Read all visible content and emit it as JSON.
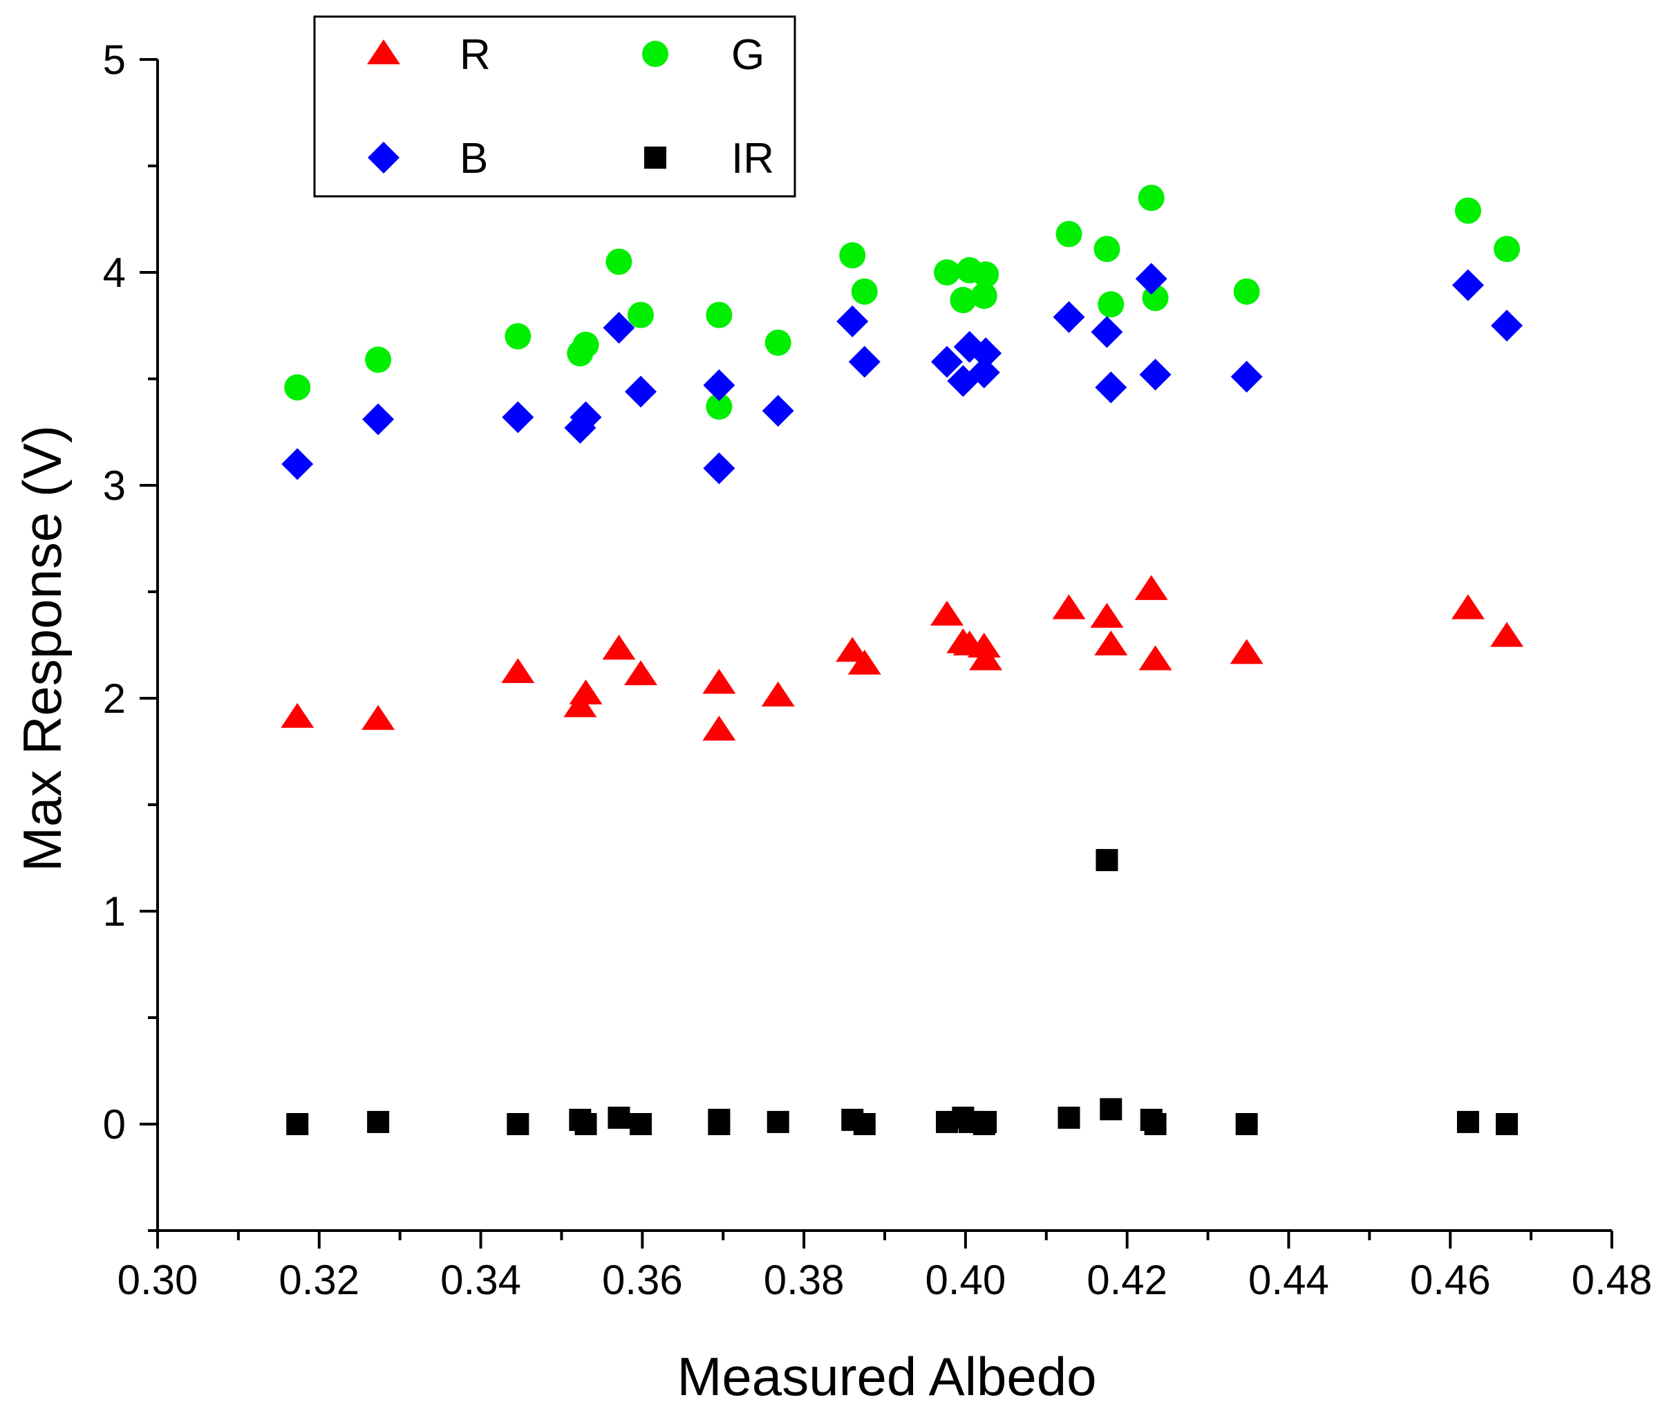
{
  "chart_data": {
    "type": "scatter",
    "title": "",
    "xlabel": "Measured Albedo",
    "ylabel": "Max Response (V)",
    "xlim": [
      0.3,
      0.48
    ],
    "ylim": [
      -0.5,
      5.0
    ],
    "xticks": [
      0.3,
      0.32,
      0.34,
      0.36,
      0.38,
      0.4,
      0.42,
      0.44,
      0.46,
      0.48
    ],
    "xtick_labels": [
      "0.30",
      "0.32",
      "0.34",
      "0.36",
      "0.38",
      "0.40",
      "0.42",
      "0.44",
      "0.46",
      "0.48"
    ],
    "yticks": [
      0,
      1,
      2,
      3,
      4,
      5
    ],
    "ytick_labels": [
      "0",
      "1",
      "2",
      "3",
      "4",
      "5"
    ],
    "grid": false,
    "legend_position": "top-left",
    "series": [
      {
        "name": "R",
        "marker": "triangle",
        "color": "#ff0000",
        "points": [
          [
            0.3173,
            1.91
          ],
          [
            0.3273,
            1.9
          ],
          [
            0.3446,
            2.12
          ],
          [
            0.3523,
            1.96
          ],
          [
            0.353,
            2.02
          ],
          [
            0.3571,
            2.23
          ],
          [
            0.3598,
            2.11
          ],
          [
            0.3695,
            2.07
          ],
          [
            0.3695,
            1.85
          ],
          [
            0.3768,
            2.01
          ],
          [
            0.386,
            2.22
          ],
          [
            0.3875,
            2.16
          ],
          [
            0.3977,
            2.39
          ],
          [
            0.3997,
            2.26
          ],
          [
            0.4005,
            2.25
          ],
          [
            0.4023,
            2.24
          ],
          [
            0.4025,
            2.18
          ],
          [
            0.4128,
            2.42
          ],
          [
            0.4175,
            2.38
          ],
          [
            0.418,
            2.25
          ],
          [
            0.423,
            2.51
          ],
          [
            0.4235,
            2.18
          ],
          [
            0.4348,
            2.21
          ],
          [
            0.4622,
            2.42
          ],
          [
            0.467,
            2.29
          ]
        ]
      },
      {
        "name": "G",
        "marker": "circle",
        "color": "#00ee00",
        "points": [
          [
            0.3173,
            3.46
          ],
          [
            0.3273,
            3.59
          ],
          [
            0.3446,
            3.7
          ],
          [
            0.3523,
            3.62
          ],
          [
            0.353,
            3.66
          ],
          [
            0.3571,
            4.05
          ],
          [
            0.3598,
            3.8
          ],
          [
            0.3695,
            3.8
          ],
          [
            0.3695,
            3.37
          ],
          [
            0.3768,
            3.67
          ],
          [
            0.386,
            4.08
          ],
          [
            0.3875,
            3.91
          ],
          [
            0.3977,
            4.0
          ],
          [
            0.3997,
            3.87
          ],
          [
            0.4005,
            4.01
          ],
          [
            0.4023,
            3.89
          ],
          [
            0.4025,
            3.99
          ],
          [
            0.4128,
            4.18
          ],
          [
            0.4175,
            4.11
          ],
          [
            0.418,
            3.85
          ],
          [
            0.423,
            4.35
          ],
          [
            0.4235,
            3.88
          ],
          [
            0.4348,
            3.91
          ],
          [
            0.4622,
            4.29
          ],
          [
            0.467,
            4.11
          ]
        ]
      },
      {
        "name": "B",
        "marker": "diamond",
        "color": "#0000ff",
        "points": [
          [
            0.3173,
            3.1
          ],
          [
            0.3273,
            3.31
          ],
          [
            0.3446,
            3.32
          ],
          [
            0.3523,
            3.27
          ],
          [
            0.353,
            3.32
          ],
          [
            0.3571,
            3.74
          ],
          [
            0.3598,
            3.44
          ],
          [
            0.3695,
            3.47
          ],
          [
            0.3695,
            3.08
          ],
          [
            0.3768,
            3.35
          ],
          [
            0.386,
            3.77
          ],
          [
            0.3875,
            3.58
          ],
          [
            0.3977,
            3.58
          ],
          [
            0.3997,
            3.49
          ],
          [
            0.4005,
            3.65
          ],
          [
            0.4023,
            3.53
          ],
          [
            0.4025,
            3.62
          ],
          [
            0.4128,
            3.79
          ],
          [
            0.4175,
            3.72
          ],
          [
            0.418,
            3.46
          ],
          [
            0.423,
            3.97
          ],
          [
            0.4235,
            3.52
          ],
          [
            0.4348,
            3.51
          ],
          [
            0.4622,
            3.94
          ],
          [
            0.467,
            3.75
          ]
        ]
      },
      {
        "name": "IR",
        "marker": "square",
        "color": "#000000",
        "points": [
          [
            0.3173,
            0.0
          ],
          [
            0.3273,
            0.01
          ],
          [
            0.3446,
            0.0
          ],
          [
            0.3523,
            0.02
          ],
          [
            0.353,
            0.0
          ],
          [
            0.3571,
            0.03
          ],
          [
            0.3598,
            0.0
          ],
          [
            0.3695,
            0.02
          ],
          [
            0.3695,
            0.0
          ],
          [
            0.3768,
            0.01
          ],
          [
            0.386,
            0.02
          ],
          [
            0.3875,
            0.0
          ],
          [
            0.3977,
            0.01
          ],
          [
            0.3997,
            0.03
          ],
          [
            0.4005,
            0.01
          ],
          [
            0.4023,
            0.0
          ],
          [
            0.4025,
            0.01
          ],
          [
            0.4128,
            0.03
          ],
          [
            0.4175,
            1.24
          ],
          [
            0.418,
            0.07
          ],
          [
            0.423,
            0.02
          ],
          [
            0.4235,
            0.0
          ],
          [
            0.4348,
            0.0
          ],
          [
            0.4622,
            0.01
          ],
          [
            0.467,
            0.0
          ]
        ]
      }
    ]
  }
}
